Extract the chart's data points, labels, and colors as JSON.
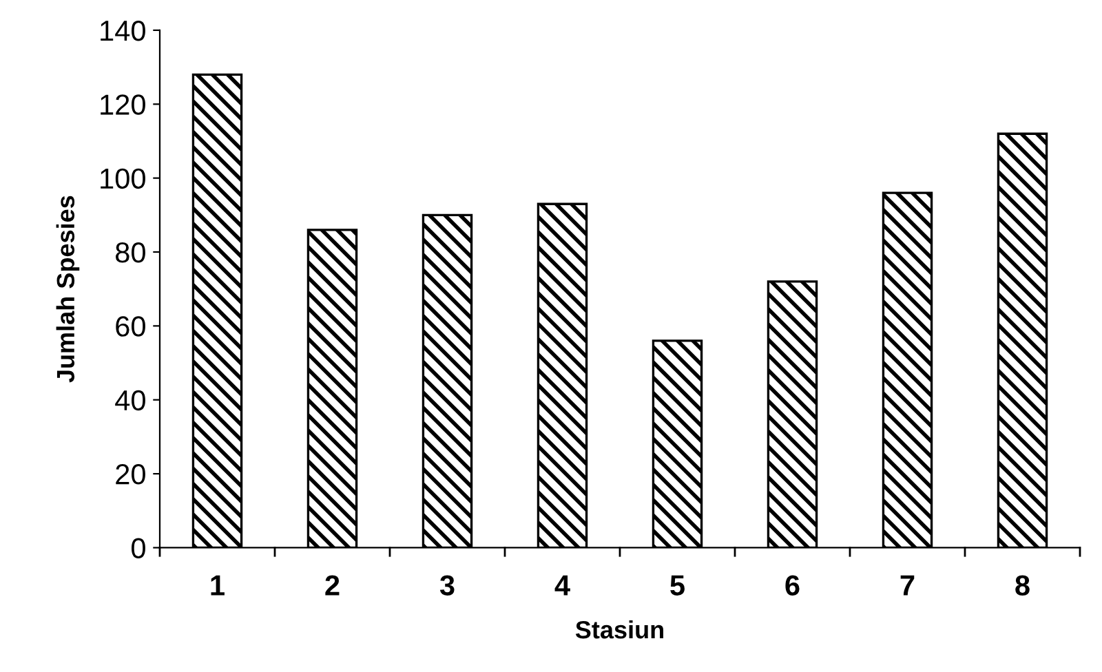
{
  "chart_data": {
    "type": "bar",
    "xlabel": "Stasiun",
    "ylabel": "Jumlah Spesies",
    "categories": [
      "1",
      "2",
      "3",
      "4",
      "5",
      "6",
      "7",
      "8"
    ],
    "values": [
      128,
      86,
      90,
      93,
      56,
      72,
      96,
      112
    ],
    "color": "#000000",
    "ylim": [
      0,
      140
    ],
    "yticks": [
      0,
      20,
      40,
      60,
      80,
      100,
      120,
      140
    ],
    "grid": false,
    "legend": false
  }
}
